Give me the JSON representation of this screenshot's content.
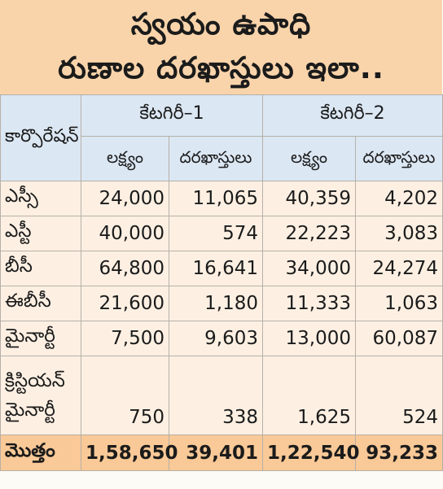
{
  "headline": {
    "line1": "స్వయం ఉపాధి",
    "line2": "రుణాల దరఖాస్తులు ఇలా.."
  },
  "table": {
    "corp_header": "కార్పొరేషన్",
    "category1": "కేటగిరీ–1",
    "category2": "కేటగిరీ–2",
    "sub_target": "లక్ష్యం",
    "sub_applications": "దరఖాస్తులు",
    "rows": [
      {
        "corp": "ఎస్సీ",
        "c1_target": "24,000",
        "c1_apps": "11,065",
        "c2_target": "40,359",
        "c2_apps": "4,202"
      },
      {
        "corp": "ఎస్టీ",
        "c1_target": "40,000",
        "c1_apps": "574",
        "c2_target": "22,223",
        "c2_apps": "3,083"
      },
      {
        "corp": "బీసీ",
        "c1_target": "64,800",
        "c1_apps": "16,641",
        "c2_target": "34,000",
        "c2_apps": "24,274"
      },
      {
        "corp": "ఈబీసీ",
        "c1_target": "21,600",
        "c1_apps": "1,180",
        "c2_target": "11,333",
        "c2_apps": "1,063"
      },
      {
        "corp": "మైనార్టీ",
        "c1_target": "7,500",
        "c1_apps": "9,603",
        "c2_target": "13,000",
        "c2_apps": "60,087"
      },
      {
        "corp": "క్రిస్టియన్ మైనార్టీ",
        "c1_target": "750",
        "c1_apps": "338",
        "c2_target": "1,625",
        "c2_apps": "524"
      }
    ],
    "total": {
      "corp": "మొత్తం",
      "c1_target": "1,58,650",
      "c1_apps": "39,401",
      "c2_target": "1,22,540",
      "c2_apps": "93,233"
    }
  }
}
